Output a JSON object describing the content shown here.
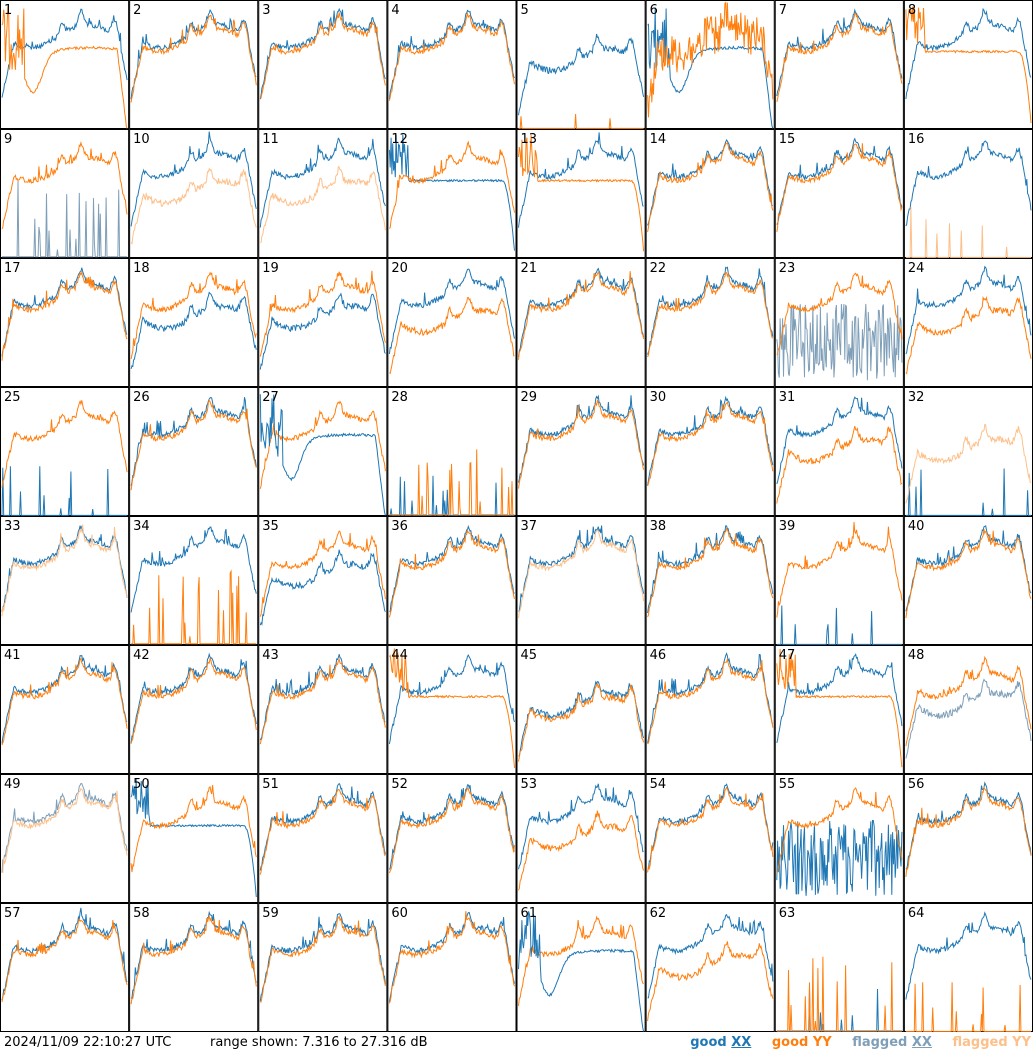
{
  "footer": {
    "timestamp": "2024/11/09 22:10:27 UTC",
    "range_label": "range shown: 7.316 to 27.316 dB"
  },
  "legend": {
    "good_xx": {
      "word": "good",
      "pol": "XX",
      "color": "#1f77b4"
    },
    "good_yy": {
      "word": "good",
      "pol": "YY",
      "color": "#ff7f0e"
    },
    "flagged_xx": {
      "word": "flagged",
      "pol": "XX",
      "color": "#7f9fb8"
    },
    "flagged_yy": {
      "word": "flagged",
      "pol": "YY",
      "color": "#fdc08a"
    }
  },
  "chart_data": {
    "type": "line",
    "title": "",
    "ylim_db": [
      7.316,
      27.316
    ],
    "grid_layout": {
      "rows": 8,
      "cols": 8
    },
    "series_names": [
      "good XX",
      "good YY",
      "flagged XX",
      "flagged YY"
    ],
    "panels": [
      {
        "id": "1",
        "xx": "normal",
        "yy": "bow",
        "hi": "yy"
      },
      {
        "id": "2",
        "xx": "normal",
        "yy": "normal"
      },
      {
        "id": "3",
        "xx": "normal",
        "yy": "normal"
      },
      {
        "id": "4",
        "xx": "normal",
        "yy": "normal"
      },
      {
        "id": "5",
        "xx": "dip",
        "yy": "dead"
      },
      {
        "id": "6",
        "xx": "bow",
        "yy": "noisy"
      },
      {
        "id": "7",
        "xx": "normal",
        "yy": "normal"
      },
      {
        "id": "8",
        "xx": "normal",
        "yy": "flatdrop"
      },
      {
        "id": "9",
        "xx": "spikes",
        "yy": "normal",
        "fx": true
      },
      {
        "id": "10",
        "xx": "normal",
        "yy": "dip",
        "fy": true
      },
      {
        "id": "11",
        "xx": "normal",
        "yy": "dip",
        "fy": true
      },
      {
        "id": "12",
        "xx": "flatdrop",
        "yy": "normal",
        "hi": "yy"
      },
      {
        "id": "13",
        "xx": "normal",
        "yy": "flatdrop",
        "hi": "yy"
      },
      {
        "id": "14",
        "xx": "normal",
        "yy": "normal"
      },
      {
        "id": "15",
        "xx": "normal",
        "yy": "normal"
      },
      {
        "id": "16",
        "xx": "normal",
        "yy": "dead",
        "fy": true
      },
      {
        "id": "17",
        "xx": "normal",
        "yy": "normal"
      },
      {
        "id": "18",
        "xx": "dip",
        "yy": "normal"
      },
      {
        "id": "19",
        "xx": "dip",
        "yy": "normal"
      },
      {
        "id": "20",
        "xx": "normal",
        "yy": "dip"
      },
      {
        "id": "21",
        "xx": "normal",
        "yy": "normal"
      },
      {
        "id": "22",
        "xx": "normal",
        "yy": "normal"
      },
      {
        "id": "23",
        "xx": "messy",
        "yy": "normal",
        "fx": true
      },
      {
        "id": "24",
        "xx": "normal",
        "yy": "dip"
      },
      {
        "id": "25",
        "xx": "dead",
        "yy": "normal"
      },
      {
        "id": "26",
        "xx": "normal",
        "yy": "normal"
      },
      {
        "id": "27",
        "xx": "bow",
        "yy": "normal",
        "hi": "xx"
      },
      {
        "id": "28",
        "xx": "dead",
        "yy": "spikes"
      },
      {
        "id": "29",
        "xx": "normal",
        "yy": "normal"
      },
      {
        "id": "30",
        "xx": "normal",
        "yy": "normal"
      },
      {
        "id": "31",
        "xx": "normal",
        "yy": "dip"
      },
      {
        "id": "32",
        "xx": "dead",
        "yy": "dip",
        "fy": true
      },
      {
        "id": "33",
        "xx": "normal",
        "yy": "normal",
        "fy": true
      },
      {
        "id": "34",
        "xx": "normal",
        "yy": "spikes"
      },
      {
        "id": "35",
        "xx": "dip",
        "yy": "normal"
      },
      {
        "id": "36",
        "xx": "normal",
        "yy": "normal"
      },
      {
        "id": "37",
        "xx": "normal",
        "yy": "normal",
        "fy": true
      },
      {
        "id": "38",
        "xx": "normal",
        "yy": "normal"
      },
      {
        "id": "39",
        "xx": "dead",
        "yy": "normal"
      },
      {
        "id": "40",
        "xx": "normal",
        "yy": "normal"
      },
      {
        "id": "41",
        "xx": "normal",
        "yy": "normal"
      },
      {
        "id": "42",
        "xx": "normal",
        "yy": "normal"
      },
      {
        "id": "43",
        "xx": "normal",
        "yy": "normal"
      },
      {
        "id": "44",
        "xx": "normal",
        "yy": "flatdrop",
        "hi": "yy"
      },
      {
        "id": "45",
        "xx": "dip",
        "yy": "dip"
      },
      {
        "id": "46",
        "xx": "normal",
        "yy": "normal"
      },
      {
        "id": "47",
        "xx": "normal",
        "yy": "flatdrop",
        "hi": "yy"
      },
      {
        "id": "48",
        "xx": "dip",
        "yy": "normal",
        "fx": true
      },
      {
        "id": "49",
        "xx": "normal",
        "yy": "normal",
        "fx": true,
        "fy": true
      },
      {
        "id": "50",
        "xx": "flatdrop",
        "yy": "normal"
      },
      {
        "id": "51",
        "xx": "normal",
        "yy": "normal"
      },
      {
        "id": "52",
        "xx": "normal",
        "yy": "normal"
      },
      {
        "id": "53",
        "xx": "normal",
        "yy": "dip",
        "hi": "yy"
      },
      {
        "id": "54",
        "xx": "normal",
        "yy": "normal"
      },
      {
        "id": "55",
        "xx": "messy",
        "yy": "normal"
      },
      {
        "id": "56",
        "xx": "normal",
        "yy": "normal"
      },
      {
        "id": "57",
        "xx": "normal",
        "yy": "normal"
      },
      {
        "id": "58",
        "xx": "normal",
        "yy": "normal"
      },
      {
        "id": "59",
        "xx": "normal",
        "yy": "normal"
      },
      {
        "id": "60",
        "xx": "normal",
        "yy": "normal"
      },
      {
        "id": "61",
        "xx": "bow",
        "yy": "normal",
        "hi": "xx"
      },
      {
        "id": "62",
        "xx": "normal",
        "yy": "dip"
      },
      {
        "id": "63",
        "xx": "dead",
        "yy": "spikes"
      },
      {
        "id": "64",
        "xx": "normal",
        "yy": "dead"
      }
    ]
  }
}
